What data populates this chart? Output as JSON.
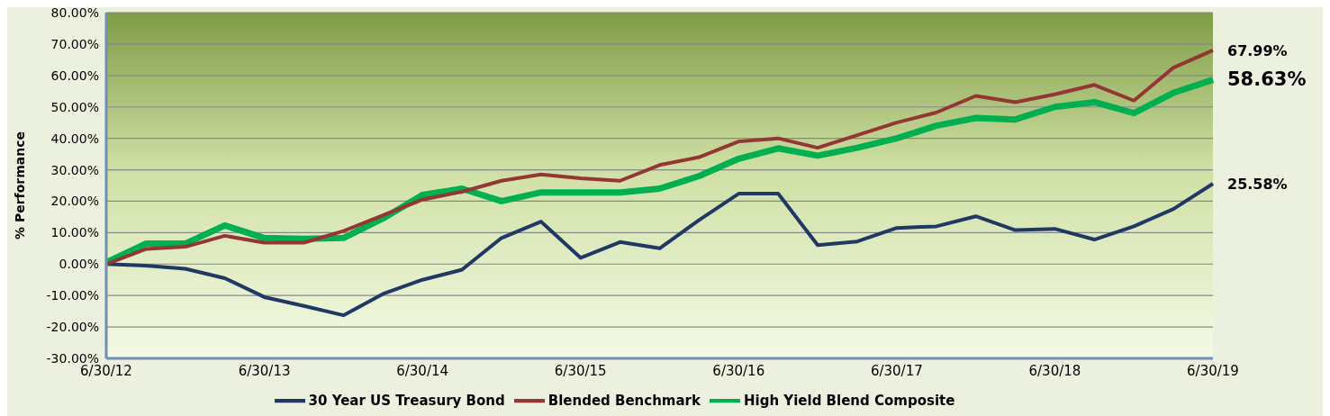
{
  "chart_data": {
    "type": "line",
    "ylabel": "% Performance",
    "categories": [
      "6/30/12",
      null,
      null,
      null,
      "6/30/13",
      null,
      null,
      null,
      "6/30/14",
      null,
      null,
      null,
      "6/30/15",
      null,
      null,
      null,
      "6/30/16",
      null,
      null,
      null,
      "6/30/17",
      null,
      null,
      null,
      "6/30/18",
      null,
      null,
      null,
      "6/30/19"
    ],
    "series": [
      {
        "name": "30 Year US Treasury Bond",
        "color": "#1f3864",
        "values": [
          0,
          -0.5,
          -1.5,
          -4.5,
          -10.5,
          -13.3,
          -16.3,
          -9.5,
          -5,
          -1.8,
          8.3,
          13.5,
          2,
          7,
          5,
          14,
          22.4,
          22.4,
          6,
          7.2,
          11.5,
          12,
          15.2,
          10.8,
          11.2,
          7.8,
          12,
          17.5,
          25.58
        ],
        "value_labels": [
          null,
          null,
          null,
          null,
          null,
          null,
          null,
          null,
          null,
          null,
          null,
          null,
          null,
          null,
          null,
          null,
          null,
          null,
          null,
          null,
          null,
          null,
          null,
          null,
          null,
          null,
          null,
          null,
          "25.58%"
        ]
      },
      {
        "name": "High Yield Blend Composite",
        "color": "#00b050",
        "values": [
          0.5,
          6.5,
          6.5,
          12.3,
          8.3,
          8,
          8.3,
          14.5,
          22,
          24,
          20,
          22.8,
          22.8,
          22.8,
          24,
          28,
          33.5,
          36.8,
          34.5,
          37,
          40,
          44,
          46.5,
          46,
          50,
          51.5,
          48,
          54.5,
          58.63
        ],
        "value_labels": [
          null,
          null,
          null,
          null,
          null,
          null,
          null,
          null,
          null,
          null,
          null,
          null,
          null,
          null,
          null,
          null,
          null,
          null,
          null,
          null,
          null,
          null,
          null,
          null,
          null,
          null,
          null,
          null,
          "58.63%"
        ]
      },
      {
        "name": "Blended Benchmark",
        "color": "#943634",
        "values": [
          0,
          4.8,
          5.5,
          9,
          6.8,
          6.8,
          10.5,
          15.5,
          20.5,
          23,
          26.5,
          28.5,
          27.3,
          26.5,
          31.5,
          34,
          39,
          40,
          37,
          41,
          45,
          48.2,
          53.5,
          51.5,
          54,
          57,
          52,
          62.5,
          67.99
        ],
        "value_labels": [
          null,
          null,
          null,
          null,
          null,
          null,
          null,
          null,
          null,
          null,
          null,
          null,
          null,
          null,
          null,
          null,
          null,
          null,
          null,
          null,
          null,
          null,
          null,
          null,
          null,
          null,
          null,
          null,
          "67.99%"
        ]
      }
    ],
    "ylim": [
      -30,
      80
    ],
    "yticks": [
      {
        "value": -30,
        "label": "-30.00%"
      },
      {
        "value": -20,
        "label": "-20.00%"
      },
      {
        "value": -10,
        "label": "-10.00%"
      },
      {
        "value": 0,
        "label": "0.00%"
      },
      {
        "value": 10,
        "label": "10.00%"
      },
      {
        "value": 20,
        "label": "20.00%"
      },
      {
        "value": 30,
        "label": "30.00%"
      },
      {
        "value": 40,
        "label": "40.00%"
      },
      {
        "value": 50,
        "label": "50.00%"
      },
      {
        "value": 60,
        "label": "60.00%"
      },
      {
        "value": 70,
        "label": "70.00%"
      },
      {
        "value": 80,
        "label": "80.00%"
      }
    ],
    "grid": "y",
    "legend": "bottom",
    "marker": "none",
    "line_style": "solid"
  }
}
